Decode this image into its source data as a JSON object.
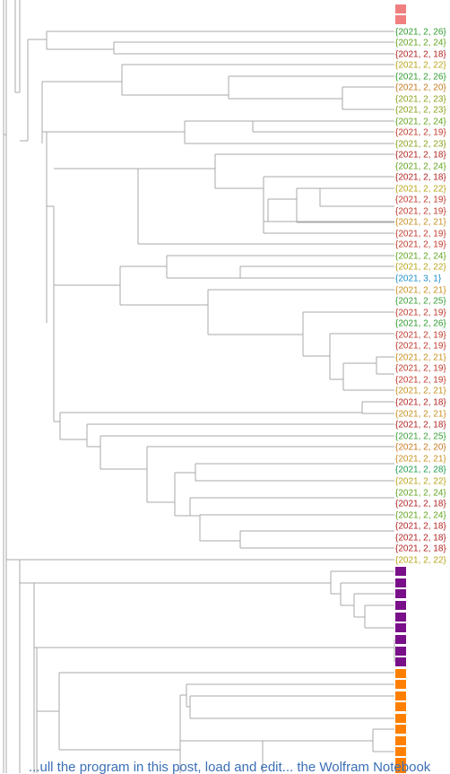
{
  "leaves": [
    {
      "label": "",
      "color": "#f08080",
      "kind": "box"
    },
    {
      "label": "",
      "color": "#f08080",
      "kind": "box"
    },
    {
      "label": "{2021, 2, 26}",
      "color": "#2e9b2e",
      "kind": "text"
    },
    {
      "label": "{2021, 2, 24}",
      "color": "#62a51e",
      "kind": "text"
    },
    {
      "label": "{2021, 2, 18}",
      "color": "#b22222",
      "kind": "text"
    },
    {
      "label": "{2021, 2, 22}",
      "color": "#b8a51a",
      "kind": "text"
    },
    {
      "label": "{2021, 2, 26}",
      "color": "#2e9b2e",
      "kind": "text"
    },
    {
      "label": "{2021, 2, 20}",
      "color": "#c8781e",
      "kind": "text"
    },
    {
      "label": "{2021, 2, 23}",
      "color": "#8aa21a",
      "kind": "text"
    },
    {
      "label": "{2021, 2, 23}",
      "color": "#8aa21a",
      "kind": "text"
    },
    {
      "label": "{2021, 2, 24}",
      "color": "#62a51e",
      "kind": "text"
    },
    {
      "label": "{2021, 2, 19}",
      "color": "#c0392b",
      "kind": "text"
    },
    {
      "label": "{2021, 2, 23}",
      "color": "#8aa21a",
      "kind": "text"
    },
    {
      "label": "{2021, 2, 18}",
      "color": "#b22222",
      "kind": "text"
    },
    {
      "label": "{2021, 2, 24}",
      "color": "#62a51e",
      "kind": "text"
    },
    {
      "label": "{2021, 2, 18}",
      "color": "#b22222",
      "kind": "text"
    },
    {
      "label": "{2021, 2, 22}",
      "color": "#b8a51a",
      "kind": "text"
    },
    {
      "label": "{2021, 2, 19}",
      "color": "#c0392b",
      "kind": "text"
    },
    {
      "label": "{2021, 2, 19}",
      "color": "#c0392b",
      "kind": "text"
    },
    {
      "label": "{2021, 2, 21}",
      "color": "#c8901e",
      "kind": "text"
    },
    {
      "label": "{2021, 2, 19}",
      "color": "#c0392b",
      "kind": "text"
    },
    {
      "label": "{2021, 2, 19}",
      "color": "#c0392b",
      "kind": "text"
    },
    {
      "label": "{2021, 2, 24}",
      "color": "#62a51e",
      "kind": "text"
    },
    {
      "label": "{2021, 2, 22}",
      "color": "#b8a51a",
      "kind": "text"
    },
    {
      "label": "{2021, 3, 1}",
      "color": "#1e90c8",
      "kind": "text"
    },
    {
      "label": "{2021, 2, 21}",
      "color": "#c8901e",
      "kind": "text"
    },
    {
      "label": "{2021, 2, 25}",
      "color": "#3aa03a",
      "kind": "text"
    },
    {
      "label": "{2021, 2, 19}",
      "color": "#c0392b",
      "kind": "text"
    },
    {
      "label": "{2021, 2, 26}",
      "color": "#2e9b2e",
      "kind": "text"
    },
    {
      "label": "{2021, 2, 19}",
      "color": "#c0392b",
      "kind": "text"
    },
    {
      "label": "{2021, 2, 19}",
      "color": "#c0392b",
      "kind": "text"
    },
    {
      "label": "{2021, 2, 21}",
      "color": "#c8901e",
      "kind": "text"
    },
    {
      "label": "{2021, 2, 19}",
      "color": "#c0392b",
      "kind": "text"
    },
    {
      "label": "{2021, 2, 19}",
      "color": "#c0392b",
      "kind": "text"
    },
    {
      "label": "{2021, 2, 21}",
      "color": "#c8901e",
      "kind": "text"
    },
    {
      "label": "{2021, 2, 18}",
      "color": "#b22222",
      "kind": "text"
    },
    {
      "label": "{2021, 2, 21}",
      "color": "#c8901e",
      "kind": "text"
    },
    {
      "label": "{2021, 2, 18}",
      "color": "#b22222",
      "kind": "text"
    },
    {
      "label": "{2021, 2, 25}",
      "color": "#3aa03a",
      "kind": "text"
    },
    {
      "label": "{2021, 2, 20}",
      "color": "#c8781e",
      "kind": "text"
    },
    {
      "label": "{2021, 2, 21}",
      "color": "#c8901e",
      "kind": "text"
    },
    {
      "label": "{2021, 2, 28}",
      "color": "#1e9b4e",
      "kind": "text"
    },
    {
      "label": "{2021, 2, 22}",
      "color": "#b8a51a",
      "kind": "text"
    },
    {
      "label": "{2021, 2, 24}",
      "color": "#62a51e",
      "kind": "text"
    },
    {
      "label": "{2021, 2, 18}",
      "color": "#b22222",
      "kind": "text"
    },
    {
      "label": "{2021, 2, 24}",
      "color": "#62a51e",
      "kind": "text"
    },
    {
      "label": "{2021, 2, 18}",
      "color": "#b22222",
      "kind": "text"
    },
    {
      "label": "{2021, 2, 18}",
      "color": "#b22222",
      "kind": "text"
    },
    {
      "label": "{2021, 2, 18}",
      "color": "#b22222",
      "kind": "text"
    },
    {
      "label": "{2021, 2, 22}",
      "color": "#b8a51a",
      "kind": "text"
    },
    {
      "label": "",
      "color": "#7a0f8a",
      "kind": "box"
    },
    {
      "label": "",
      "color": "#7a0f8a",
      "kind": "box"
    },
    {
      "label": "",
      "color": "#7a0f8a",
      "kind": "box"
    },
    {
      "label": "",
      "color": "#7a0f8a",
      "kind": "box"
    },
    {
      "label": "",
      "color": "#7a0f8a",
      "kind": "box"
    },
    {
      "label": "",
      "color": "#7a0f8a",
      "kind": "box"
    },
    {
      "label": "",
      "color": "#7a0f8a",
      "kind": "box"
    },
    {
      "label": "",
      "color": "#7a0f8a",
      "kind": "box"
    },
    {
      "label": "",
      "color": "#7a0f8a",
      "kind": "box"
    },
    {
      "label": "",
      "color": "#ff8000",
      "kind": "box"
    },
    {
      "label": "",
      "color": "#ff8000",
      "kind": "box"
    },
    {
      "label": "",
      "color": "#ff8000",
      "kind": "box"
    },
    {
      "label": "",
      "color": "#ff8000",
      "kind": "box"
    },
    {
      "label": "",
      "color": "#ff8000",
      "kind": "box"
    },
    {
      "label": "",
      "color": "#ff8000",
      "kind": "box"
    },
    {
      "label": "",
      "color": "#ff8000",
      "kind": "box"
    },
    {
      "label": "",
      "color": "#ff8000",
      "kind": "box"
    },
    {
      "label": "",
      "color": "#ff8000",
      "kind": "box"
    },
    {
      "label": "",
      "color": "#ff8000",
      "kind": "box"
    }
  ],
  "caption": "...ull the program in this post, load and edit... the Wolfram Notebook"
}
